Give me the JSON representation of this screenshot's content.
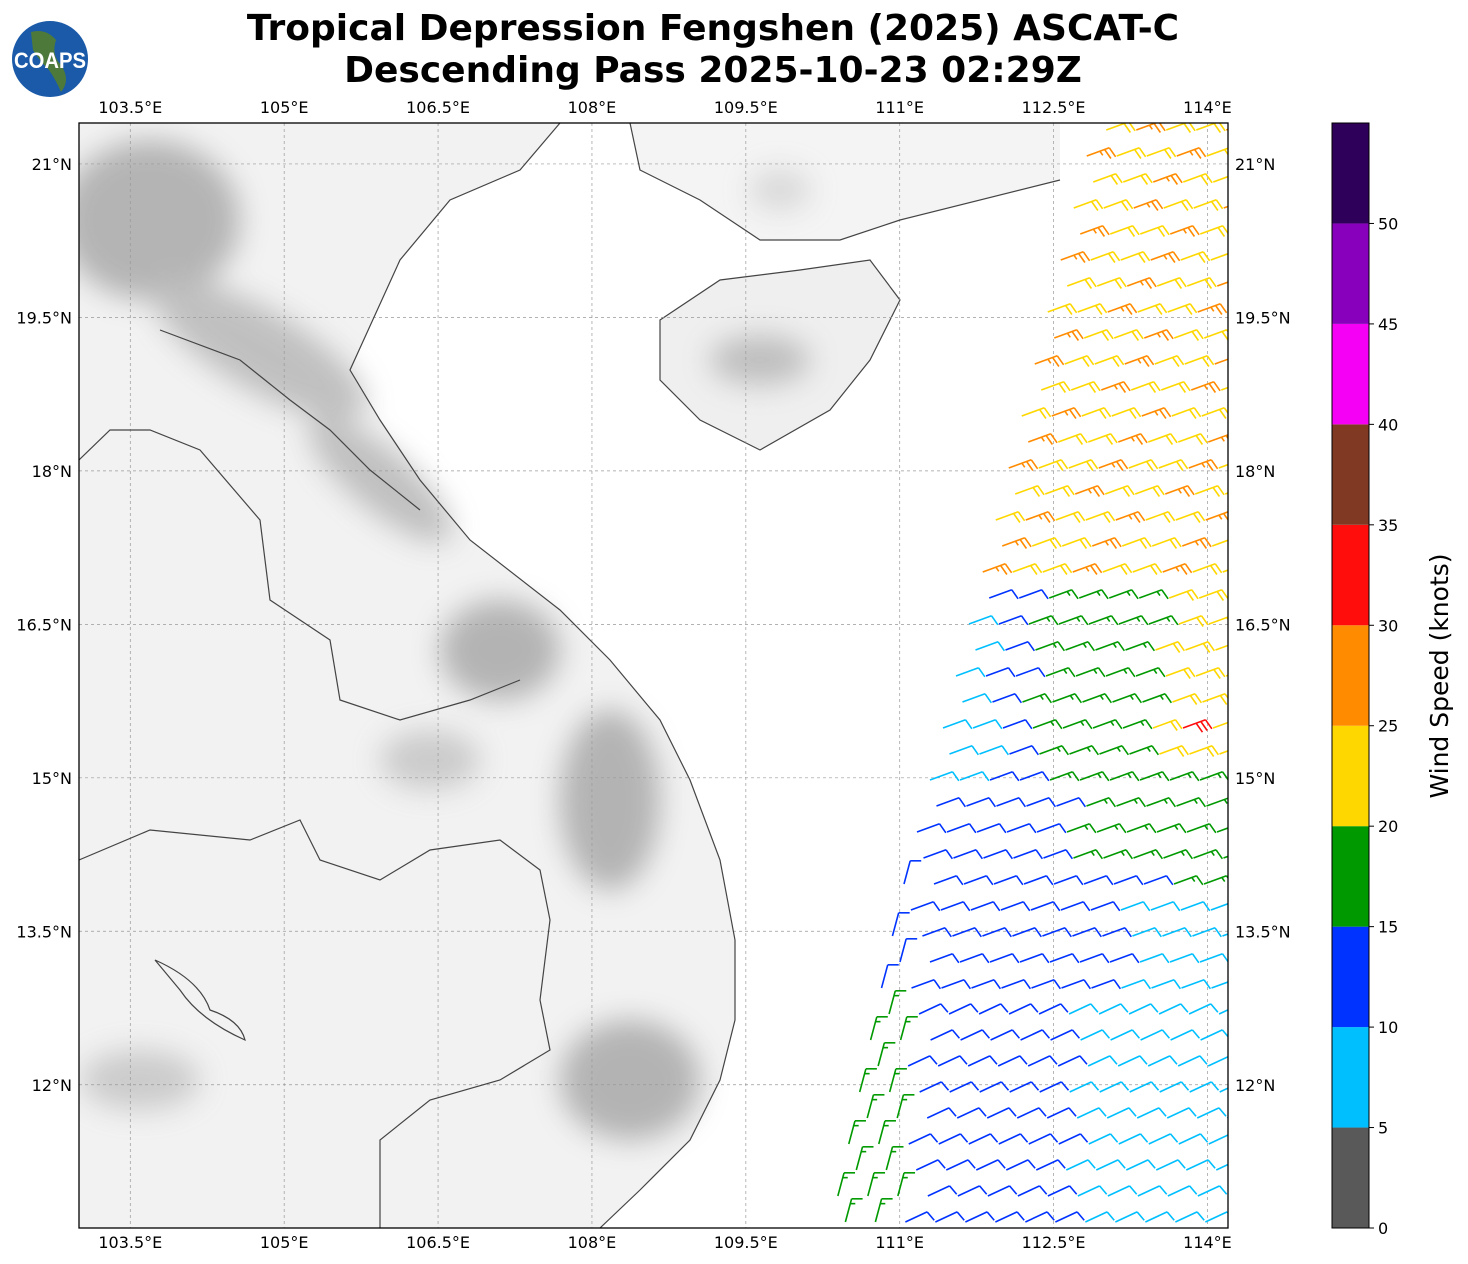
{
  "title": {
    "line1": "Tropical Depression Fengshen (2025) ASCAT-C",
    "line2": "Descending Pass 2025-10-23 02:29Z"
  },
  "logo": {
    "text": "COAPS"
  },
  "map": {
    "lon_range": [
      103.0,
      114.2
    ],
    "lat_range": [
      10.6,
      21.4
    ],
    "lon_ticks": [
      "103.5°E",
      "105°E",
      "106.5°E",
      "108°E",
      "109.5°E",
      "111°E",
      "112.5°E",
      "114°E"
    ],
    "lon_tick_values": [
      103.5,
      105,
      106.5,
      108,
      109.5,
      111,
      112.5,
      114
    ],
    "lat_ticks": [
      "21°N",
      "19.5°N",
      "18°N",
      "16.5°N",
      "15°N",
      "13.5°N",
      "12°N"
    ],
    "lat_tick_values": [
      21,
      19.5,
      18,
      16.5,
      15,
      13.5,
      12
    ],
    "grid": true,
    "background": "grayscale terrain"
  },
  "colorbar": {
    "label": "Wind Speed (knots)",
    "ticks": [
      "0",
      "5",
      "10",
      "15",
      "20",
      "25",
      "30",
      "35",
      "40",
      "45",
      "50"
    ],
    "range": [
      0,
      55
    ],
    "colors": [
      "#595959",
      "#00bfff",
      "#0033ff",
      "#009900",
      "#ffd700",
      "#ff8c00",
      "#ff0d0d",
      "#803a24",
      "#f500f5",
      "#8800bb",
      "#2e0059"
    ]
  }
}
